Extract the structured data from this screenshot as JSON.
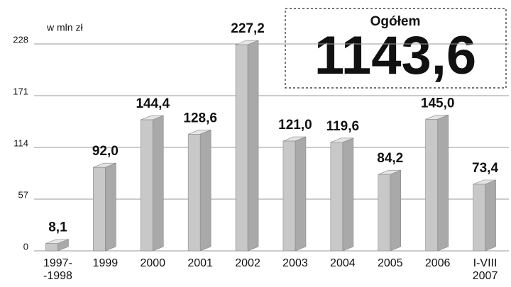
{
  "chart_data": {
    "type": "bar3d",
    "unit_label": "w mln zł",
    "total_title": "Ogółem",
    "total_text": "1143,6",
    "categories": [
      [
        "1997-",
        "-1998"
      ],
      "1999",
      "2000",
      "2001",
      "2002",
      "2003",
      "2004",
      "2005",
      "2006",
      [
        "I-VIII",
        "2007"
      ]
    ],
    "values": [
      8.1,
      92.0,
      144.4,
      128.6,
      227.2,
      121.0,
      119.6,
      84.2,
      145.0,
      73.4
    ],
    "value_labels": [
      "8,1",
      "92,0",
      "144,4",
      "128,6",
      "227,2",
      "121,0",
      "119,6",
      "84,2",
      "145,0",
      "73,4"
    ],
    "color": "#c8c8c8",
    "ylim": [
      0,
      228
    ],
    "yticks": [
      0,
      57,
      114,
      171,
      228
    ],
    "grid": true
  }
}
